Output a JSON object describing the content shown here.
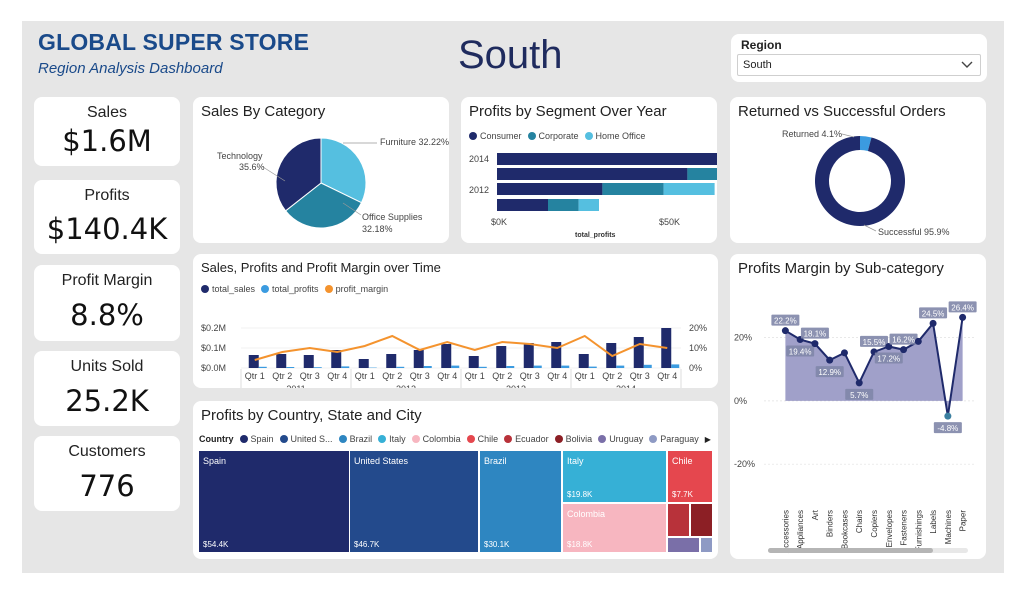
{
  "header": {
    "brand_title": "GLOBAL SUPER STORE",
    "brand_subtitle": "Region Analysis Dashboard",
    "region_heading": "South"
  },
  "slicer": {
    "label": "Region",
    "value": "South",
    "chevron_icon": "chevron-down-icon"
  },
  "kpis": [
    {
      "label": "Sales",
      "value": "$1.6M"
    },
    {
      "label": "Profits",
      "value": "$140.4K"
    },
    {
      "label": "Profit Margin",
      "value": "8.8%"
    },
    {
      "label": "Units Sold",
      "value": "25.2K"
    },
    {
      "label": "Customers",
      "value": "776"
    }
  ],
  "colors": {
    "navy": "#1f2a6b",
    "teal": "#2583a0",
    "sky": "#55bfe0",
    "orange": "#f4932e",
    "blue": "#3b9be0",
    "area": "#8f8fbf"
  },
  "chart_data": [
    {
      "id": "sales_by_category",
      "type": "pie",
      "title": "Sales By Category",
      "slices": [
        {
          "name": "Furniture",
          "value": 32.22,
          "label": "Furniture 32.22%",
          "color": "#55bfe0"
        },
        {
          "name": "Office Supplies",
          "value": 32.18,
          "label_line1": "Office Supplies",
          "label_line2": "32.18%",
          "color": "#2583a0"
        },
        {
          "name": "Technology",
          "value": 35.6,
          "label_line1": "Technology",
          "label_line2": "35.6%",
          "color": "#1f2a6b"
        }
      ]
    },
    {
      "id": "profits_by_segment",
      "type": "bar",
      "orientation": "horizontal-stacked",
      "title": "Profits by Segment Over Year",
      "series": [
        {
          "name": "Consumer",
          "color": "#1f2a6b",
          "values": [
            68,
            56,
            31,
            15
          ]
        },
        {
          "name": "Corporate",
          "color": "#2583a0",
          "values": [
            24,
            16,
            18,
            9
          ]
        },
        {
          "name": "Home Office",
          "color": "#55bfe0",
          "values": [
            13,
            19,
            15,
            6
          ]
        }
      ],
      "categories": [
        "2014",
        "2013",
        "2012",
        "2011"
      ],
      "y_tick_labels": [
        "2014",
        "2012"
      ],
      "x_ticks": [
        "$0K",
        "$50K"
      ],
      "xlim": [
        0,
        100
      ],
      "xlabel": "total_profits"
    },
    {
      "id": "returned_vs_successful",
      "type": "pie",
      "title": "Returned vs Successful Orders",
      "donut": true,
      "slices": [
        {
          "name": "Returned",
          "value": 4.1,
          "label": "Returned 4.1%",
          "color": "#3b9be0"
        },
        {
          "name": "Successful",
          "value": 95.9,
          "label": "Successful 95.9%",
          "color": "#1f2a6b"
        }
      ]
    },
    {
      "id": "sales_profits_margin_time",
      "type": "bar",
      "title": "Sales, Profits and Profit Margin over Time",
      "legend": [
        "total_sales",
        "total_profits",
        "profit_margin"
      ],
      "quarters": [
        "Qtr 1",
        "Qtr 2",
        "Qtr 3",
        "Qtr 4",
        "Qtr 1",
        "Qtr 2",
        "Qtr 3",
        "Qtr 4",
        "Qtr 1",
        "Qtr 2",
        "Qtr 3",
        "Qtr 4",
        "Qtr 1",
        "Qtr 2",
        "Qtr 3",
        "Qtr 4"
      ],
      "years": [
        "2011",
        "2012",
        "2013",
        "2014"
      ],
      "total_sales": [
        0.065,
        0.07,
        0.065,
        0.09,
        0.045,
        0.07,
        0.09,
        0.12,
        0.06,
        0.11,
        0.125,
        0.13,
        0.07,
        0.125,
        0.155,
        0.2
      ],
      "total_profits": [
        0.006,
        0.005,
        0.004,
        0.008,
        0.002,
        0.006,
        0.01,
        0.012,
        0.006,
        0.01,
        0.012,
        0.012,
        0.007,
        0.012,
        0.016,
        0.018
      ],
      "profit_margin": [
        4,
        8,
        10,
        8,
        11,
        16,
        9,
        13,
        9,
        13,
        12,
        10,
        16,
        6,
        12,
        10
      ],
      "y_left_ticks": [
        "$0.0M",
        "$0.1M",
        "$0.2M"
      ],
      "ylim_left": [
        0,
        0.2
      ],
      "y_right_ticks": [
        "0%",
        "10%",
        "20%"
      ],
      "ylim_right": [
        0,
        20
      ]
    },
    {
      "id": "profits_margin_by_subcategory",
      "type": "area",
      "title": "Profits Margin by Sub-category",
      "categories": [
        "Accessories",
        "Appliances",
        "Art",
        "Binders",
        "Bookcases",
        "Chairs",
        "Copiers",
        "Envelopes",
        "Fasteners",
        "Furnishings",
        "Labels",
        "Machines",
        "Paper"
      ],
      "values": [
        22.2,
        19.4,
        18.1,
        12.9,
        15.2,
        5.7,
        15.5,
        17.2,
        16.2,
        18.8,
        24.5,
        -4.8,
        26.4
      ],
      "data_labels": [
        "22.2%",
        "19.4%",
        "18.1%",
        "12.9%",
        "",
        "5.7%",
        "15.5%",
        "17.2%",
        "16.2%",
        "",
        "24.5%",
        "-4.8%",
        "26.4%"
      ],
      "y_ticks": [
        "20%",
        "0%",
        "-20%"
      ],
      "ylim": [
        -25,
        30
      ]
    },
    {
      "id": "profits_by_country",
      "type": "heatmap",
      "subtype": "treemap",
      "title": "Profits by Country, State and City",
      "legend_title": "Country",
      "legend": [
        {
          "name": "Spain",
          "color": "#1f2a6b"
        },
        {
          "name": "United S...",
          "color": "#234a8c"
        },
        {
          "name": "Brazil",
          "color": "#2e86c1"
        },
        {
          "name": "Italy",
          "color": "#36b0d6"
        },
        {
          "name": "Colombia",
          "color": "#f7b6c0"
        },
        {
          "name": "Chile",
          "color": "#e5474e"
        },
        {
          "name": "Ecuador",
          "color": "#b8323a"
        },
        {
          "name": "Bolivia",
          "color": "#8c1f25"
        },
        {
          "name": "Uruguay",
          "color": "#7a6fa8"
        },
        {
          "name": "Paraguay",
          "color": "#8e9ac4"
        }
      ],
      "tiles": [
        {
          "name": "Spain",
          "value": "$54.4K",
          "color": "#1f2a6b"
        },
        {
          "name": "United States",
          "value": "$46.7K",
          "color": "#234a8c"
        },
        {
          "name": "Brazil",
          "value": "$30.1K",
          "color": "#2e86c1"
        },
        {
          "name": "Italy",
          "value": "$19.8K",
          "color": "#36b0d6"
        },
        {
          "name": "Colombia",
          "value": "$18.8K",
          "color": "#f7b6c0"
        },
        {
          "name": "Chile",
          "value": "$7.7K",
          "color": "#e5474e"
        }
      ]
    }
  ]
}
